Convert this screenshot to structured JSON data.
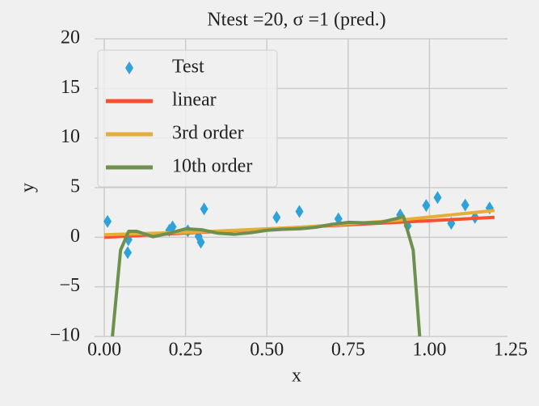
{
  "chart_data": {
    "type": "line",
    "title": "Ntest =20, σ =1 (pred.)",
    "xlabel": "x",
    "ylabel": "y",
    "xlim": [
      -0.03,
      1.24
    ],
    "ylim": [
      -10,
      20
    ],
    "xticks": [
      {
        "value": 0,
        "label": "0.00"
      },
      {
        "value": 0.25,
        "label": "0.25"
      },
      {
        "value": 0.5,
        "label": "0.50"
      },
      {
        "value": 0.75,
        "label": "0.75"
      },
      {
        "value": 1,
        "label": "1.00"
      },
      {
        "value": 1.25,
        "label": "1.25"
      }
    ],
    "yticks": [
      {
        "value": -10,
        "label": "−10"
      },
      {
        "value": -5,
        "label": "−5"
      },
      0,
      5,
      10,
      15,
      20
    ],
    "grid": true,
    "legend": "upper left",
    "series": [
      {
        "name": "Test",
        "color": "#30a2da",
        "marker": "diamond",
        "x": [
          0.01,
          0.074,
          0.072,
          0.2,
          0.21,
          0.257,
          0.29,
          0.297,
          0.307,
          0.53,
          0.6,
          0.72,
          0.91,
          0.933,
          0.99,
          1.025,
          1.067,
          1.11,
          1.14,
          1.185
        ],
        "values": [
          1.6,
          -0.25,
          -1.55,
          0.7,
          1.05,
          0.65,
          0.1,
          -0.5,
          2.85,
          2.0,
          2.6,
          1.85,
          2.25,
          1.15,
          3.2,
          4.0,
          1.4,
          3.25,
          2.0,
          2.95
        ]
      },
      {
        "name": "linear",
        "color": "#fc4f30",
        "x": [
          0,
          1.2
        ],
        "values": [
          0,
          2.0
        ]
      },
      {
        "name": "3rd order",
        "color": "#e5ae38",
        "x": [
          0,
          0.3,
          0.6,
          0.9,
          1.2
        ],
        "values": [
          0.25,
          0.55,
          1.0,
          1.7,
          2.7
        ]
      },
      {
        "name": "10th order",
        "color": "#6d904f",
        "x": [
          0.025,
          0.05,
          0.075,
          0.1,
          0.15,
          0.2,
          0.25,
          0.3,
          0.35,
          0.4,
          0.45,
          0.5,
          0.55,
          0.6,
          0.65,
          0.7,
          0.75,
          0.8,
          0.85,
          0.9,
          0.92,
          0.95,
          0.97
        ],
        "values": [
          -10,
          -1.3,
          0.6,
          0.6,
          0.05,
          0.4,
          0.85,
          0.75,
          0.4,
          0.3,
          0.45,
          0.7,
          0.8,
          0.85,
          1.0,
          1.3,
          1.5,
          1.45,
          1.5,
          1.9,
          2.1,
          -1.3,
          -10
        ]
      }
    ]
  }
}
